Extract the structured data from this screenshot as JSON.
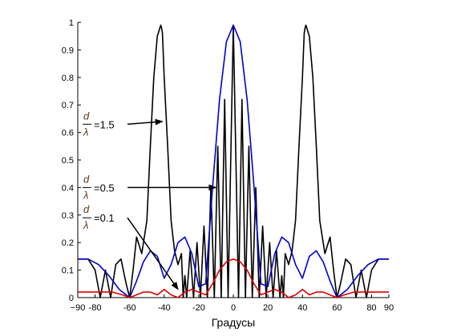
{
  "chart_data": {
    "type": "line",
    "xlabel": "Градусы",
    "ylabel": "",
    "xlim": [
      -90,
      90
    ],
    "ylim": [
      0,
      1
    ],
    "x_ticks": [
      -90,
      -80,
      -60,
      -40,
      -20,
      0,
      20,
      40,
      60,
      80,
      90
    ],
    "x_tick_labels": [
      "−90",
      "-80",
      "-60",
      "-40",
      "-20",
      "0",
      "20",
      "40",
      "60",
      "80",
      "90"
    ],
    "y_ticks": [
      0,
      0.1,
      0.2,
      0.3,
      0.4,
      0.5,
      0.6,
      0.7,
      0.8,
      0.9,
      1
    ],
    "y_tick_labels": [
      "0",
      "0.1",
      "0.2",
      "0.3",
      "0.4",
      "0.5",
      "0.6",
      "0.7",
      "0.8",
      "0.9",
      "1"
    ],
    "grid": false,
    "legend": "none",
    "series": [
      {
        "color": "#000000",
        "x": [
          -90,
          -84,
          -80,
          -77,
          -74,
          -71,
          -68,
          -65,
          -62,
          -60,
          -58,
          -56,
          -53,
          -50,
          -48,
          -46,
          -44,
          -42,
          -41.5,
          -41,
          -40,
          -38,
          -36,
          -34,
          -32,
          -30,
          -29,
          -28,
          -27,
          -25,
          -23,
          -21,
          -19,
          -17,
          -15,
          -13,
          -11,
          -9,
          -7,
          -5,
          -3,
          0,
          3,
          5,
          7,
          9,
          11,
          13,
          15,
          17,
          19,
          21,
          23,
          25,
          27,
          28,
          29,
          30,
          32,
          34,
          36,
          38,
          40,
          41,
          41.5,
          42,
          44,
          46,
          48,
          50,
          53,
          56,
          58,
          60,
          62,
          65,
          68,
          71,
          74,
          77,
          80,
          84,
          90
        ],
        "y": [
          0.14,
          0.14,
          0.1,
          0.0,
          0.1,
          0.0,
          0.12,
          0.14,
          0.05,
          0.0,
          0.1,
          0.22,
          0.16,
          0.28,
          0.55,
          0.8,
          0.95,
          0.99,
          0.98,
          0.96,
          0.8,
          0.55,
          0.28,
          0.17,
          0.12,
          0.16,
          0.0,
          0.08,
          0.0,
          0.17,
          0.0,
          0.2,
          0.0,
          0.26,
          0.0,
          0.4,
          0.0,
          0.55,
          0.0,
          0.72,
          0.0,
          0.99,
          0.0,
          0.72,
          0.0,
          0.55,
          0.0,
          0.4,
          0.0,
          0.26,
          0.0,
          0.2,
          0.0,
          0.17,
          0.0,
          0.08,
          0.0,
          0.16,
          0.12,
          0.17,
          0.28,
          0.55,
          0.8,
          0.96,
          0.98,
          0.99,
          0.95,
          0.8,
          0.55,
          0.28,
          0.16,
          0.22,
          0.1,
          0.0,
          0.05,
          0.14,
          0.12,
          0.0,
          0.1,
          0.0,
          0.1,
          0.14,
          0.14
        ]
      },
      {
        "color": "#0000cc",
        "x": [
          -90,
          -84,
          -78,
          -72,
          -66,
          -60,
          -56,
          -52,
          -48,
          -44,
          -40,
          -36,
          -32,
          -28,
          -24,
          -20,
          -16,
          -12,
          -8,
          -4,
          0,
          4,
          8,
          12,
          16,
          20,
          24,
          28,
          32,
          36,
          40,
          44,
          48,
          52,
          56,
          60,
          66,
          72,
          78,
          84,
          90
        ],
        "y": [
          0.14,
          0.14,
          0.12,
          0.08,
          0.03,
          0.0,
          0.06,
          0.13,
          0.17,
          0.15,
          0.07,
          0.12,
          0.2,
          0.22,
          0.16,
          0.04,
          0.05,
          0.4,
          0.72,
          0.93,
          0.99,
          0.93,
          0.72,
          0.4,
          0.05,
          0.04,
          0.16,
          0.22,
          0.2,
          0.12,
          0.07,
          0.15,
          0.17,
          0.13,
          0.06,
          0.0,
          0.03,
          0.08,
          0.12,
          0.14,
          0.14
        ]
      },
      {
        "color": "#dd0000",
        "x": [
          -90,
          -80,
          -70,
          -64,
          -60,
          -56,
          -52,
          -48,
          -44,
          -40,
          -36,
          -32,
          -28,
          -24,
          -20,
          -16,
          -12,
          -8,
          -4,
          0,
          4,
          8,
          12,
          16,
          20,
          24,
          28,
          32,
          36,
          40,
          44,
          48,
          52,
          56,
          60,
          64,
          70,
          80,
          90
        ],
        "y": [
          0.02,
          0.02,
          0.02,
          0.01,
          0.0,
          0.01,
          0.02,
          0.02,
          0.01,
          0.03,
          0.01,
          0.0,
          0.02,
          0.03,
          0.02,
          0.01,
          0.05,
          0.1,
          0.13,
          0.14,
          0.13,
          0.1,
          0.05,
          0.01,
          0.02,
          0.03,
          0.02,
          0.0,
          0.01,
          0.03,
          0.01,
          0.02,
          0.02,
          0.01,
          0.0,
          0.01,
          0.02,
          0.02,
          0.02
        ]
      }
    ],
    "annotations": [
      {
        "label": "=1.5",
        "points_to": [
          -41,
          0.64
        ]
      },
      {
        "label": "=0.5",
        "points_to": [
          -10,
          0.4
        ]
      },
      {
        "label": "=0.1",
        "points_to": [
          -32,
          0.03
        ]
      }
    ],
    "annotation_symbols": {
      "numerator": "d",
      "denominator": "λ"
    }
  }
}
